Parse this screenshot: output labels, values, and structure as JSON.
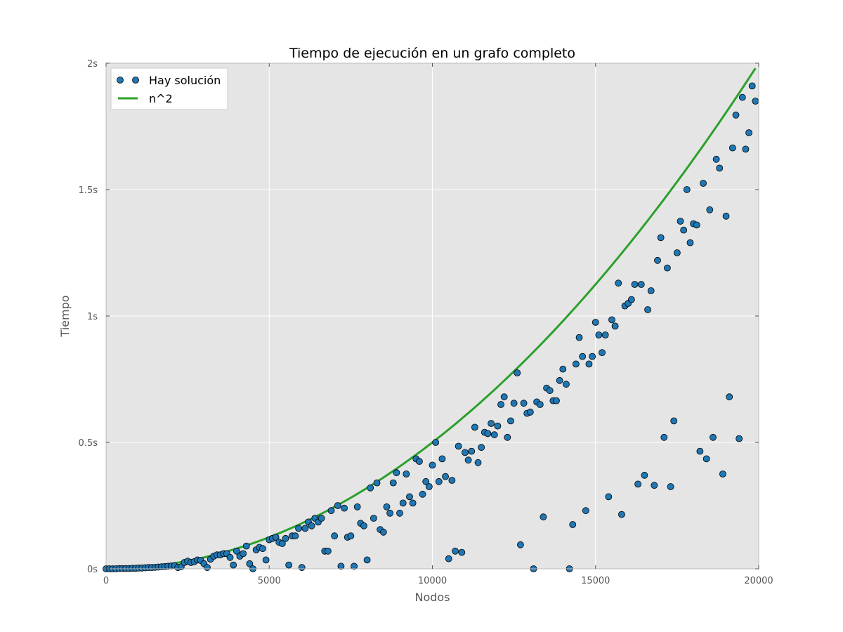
{
  "chart_data": {
    "type": "scatter",
    "title": "Tiempo de ejecución en un grafo completo",
    "xlabel": "Nodos",
    "ylabel": "Tiempo",
    "xlim": [
      0,
      20000
    ],
    "ylim": [
      0,
      2
    ],
    "xticks": [
      0,
      5000,
      10000,
      15000,
      20000
    ],
    "xtick_labels": [
      "0",
      "5000",
      "10000",
      "15000",
      "20000"
    ],
    "yticks": [
      0,
      0.5,
      1,
      1.5,
      2
    ],
    "ytick_labels": [
      "0s",
      "0.5s",
      "1s",
      "1.5s",
      "2s"
    ],
    "grid": true,
    "legend_position": "top-left",
    "colors": {
      "scatter": "#1f77b4",
      "line": "#2ca02c",
      "plot_bg": "#e5e5e5",
      "grid": "#ffffff"
    },
    "series": [
      {
        "name": "Hay solución",
        "kind": "scatter",
        "x": [
          0,
          100,
          200,
          300,
          400,
          500,
          600,
          700,
          800,
          900,
          1000,
          1100,
          1200,
          1300,
          1400,
          1500,
          1600,
          1700,
          1800,
          1900,
          2000,
          2100,
          2200,
          2300,
          2400,
          2500,
          2600,
          2700,
          2800,
          2900,
          3000,
          3100,
          3200,
          3300,
          3400,
          3500,
          3600,
          3700,
          3800,
          3900,
          4000,
          4100,
          4200,
          4300,
          4400,
          4500,
          4600,
          4700,
          4800,
          4900,
          5000,
          5100,
          5200,
          5300,
          5400,
          5500,
          5600,
          5700,
          5800,
          5900,
          6000,
          6100,
          6200,
          6300,
          6400,
          6500,
          6600,
          6700,
          6800,
          6900,
          7000,
          7100,
          7200,
          7300,
          7400,
          7500,
          7600,
          7700,
          7800,
          7900,
          8000,
          8100,
          8200,
          8300,
          8400,
          8500,
          8600,
          8700,
          8800,
          8900,
          9000,
          9100,
          9200,
          9300,
          9400,
          9500,
          9600,
          9700,
          9800,
          9900,
          10000,
          10100,
          10200,
          10300,
          10400,
          10500,
          10600,
          10700,
          10800,
          10900,
          11000,
          11100,
          11200,
          11300,
          11400,
          11500,
          11600,
          11700,
          11800,
          11900,
          12000,
          12100,
          12200,
          12300,
          12400,
          12500,
          12600,
          12700,
          12800,
          12900,
          13000,
          13100,
          13200,
          13300,
          13400,
          13500,
          13600,
          13700,
          13800,
          13900,
          14000,
          14100,
          14200,
          14300,
          14400,
          14500,
          14600,
          14700,
          14800,
          14900,
          15000,
          15100,
          15200,
          15300,
          15400,
          15500,
          15600,
          15700,
          15800,
          15900,
          16000,
          16100,
          16200,
          16300,
          16400,
          16500,
          16600,
          16700,
          16800,
          16900,
          17000,
          17100,
          17200,
          17300,
          17400,
          17500,
          17600,
          17700,
          17800,
          17900,
          18000,
          18100,
          18200,
          18300,
          18400,
          18500,
          18600,
          18700,
          18800,
          18900,
          19000,
          19100,
          19200,
          19300,
          19400,
          19500,
          19600,
          19700,
          19800,
          19900
        ],
        "y": [
          0.0,
          0.0,
          0.0,
          0.0,
          0.001,
          0.001,
          0.001,
          0.001,
          0.002,
          0.002,
          0.003,
          0.003,
          0.004,
          0.005,
          0.005,
          0.006,
          0.007,
          0.008,
          0.009,
          0.01,
          0.011,
          0.012,
          0.005,
          0.008,
          0.025,
          0.03,
          0.025,
          0.028,
          0.035,
          0.033,
          0.02,
          0.005,
          0.038,
          0.05,
          0.055,
          0.055,
          0.06,
          0.06,
          0.045,
          0.015,
          0.07,
          0.05,
          0.06,
          0.09,
          0.02,
          0.0,
          0.075,
          0.085,
          0.08,
          0.035,
          0.115,
          0.12,
          0.125,
          0.105,
          0.1,
          0.12,
          0.015,
          0.13,
          0.13,
          0.16,
          0.005,
          0.16,
          0.185,
          0.17,
          0.2,
          0.185,
          0.2,
          0.07,
          0.07,
          0.23,
          0.13,
          0.25,
          0.01,
          0.24,
          0.125,
          0.13,
          0.01,
          0.245,
          0.18,
          0.17,
          0.035,
          0.32,
          0.2,
          0.34,
          0.155,
          0.145,
          0.245,
          0.22,
          0.34,
          0.38,
          0.22,
          0.26,
          0.375,
          0.285,
          0.26,
          0.435,
          0.425,
          0.295,
          0.345,
          0.325,
          0.41,
          0.5,
          0.345,
          0.435,
          0.365,
          0.04,
          0.35,
          0.07,
          0.485,
          0.065,
          0.46,
          0.43,
          0.465,
          0.56,
          0.42,
          0.48,
          0.54,
          0.535,
          0.575,
          0.53,
          0.565,
          0.65,
          0.68,
          0.52,
          0.585,
          0.655,
          0.775,
          0.095,
          0.655,
          0.615,
          0.62,
          0.0,
          0.66,
          0.65,
          0.205,
          0.715,
          0.705,
          0.665,
          0.665,
          0.745,
          0.79,
          0.73,
          0.0,
          0.175,
          0.81,
          0.915,
          0.84,
          0.23,
          0.81,
          0.84,
          0.975,
          0.925,
          0.855,
          0.925,
          0.285,
          0.985,
          0.96,
          1.13,
          0.215,
          1.04,
          1.05,
          1.065,
          1.125,
          0.335,
          1.125,
          0.37,
          1.025,
          1.1,
          0.33,
          1.22,
          1.31,
          0.52,
          1.19,
          0.325,
          0.585,
          1.25,
          1.375,
          1.34,
          1.5,
          1.29,
          1.365,
          1.36,
          0.465,
          1.525,
          0.435,
          1.42,
          0.52,
          1.62,
          1.585,
          0.375,
          1.395,
          0.68,
          1.665,
          1.795,
          0.515,
          1.865,
          1.66,
          1.725,
          1.91,
          1.85
        ]
      },
      {
        "name": "n^2",
        "kind": "line",
        "function": "y = 5e-9 * x^2",
        "x_range": [
          0,
          19900
        ]
      }
    ]
  }
}
